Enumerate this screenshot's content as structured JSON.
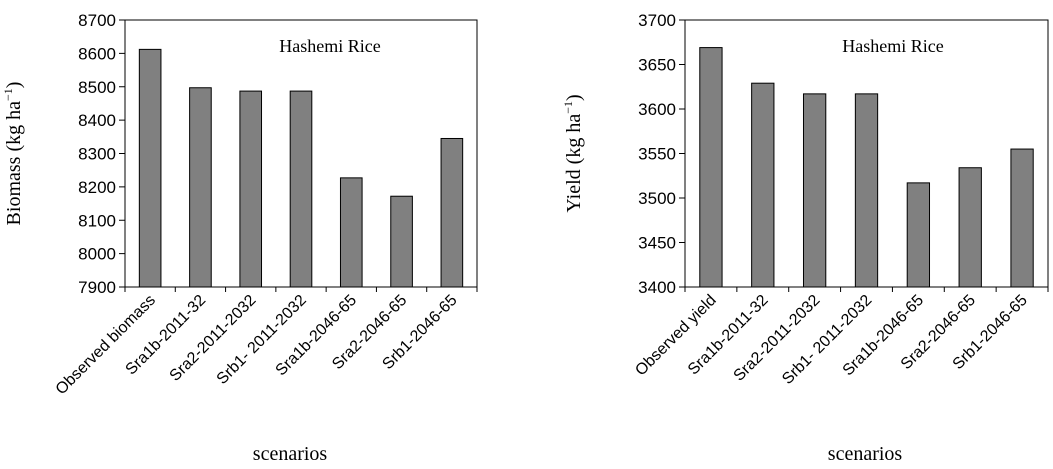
{
  "chart_data": [
    {
      "type": "bar",
      "title": "Hashemi Rice",
      "xlabel": "scenarios",
      "ylabel": "Biomass",
      "ylabel_unit": "(kg ha",
      "ylabel_sup": "−1",
      "ylabel_close": ")",
      "ylim": [
        7900,
        8700
      ],
      "ytick_step": 100,
      "yticks": [
        "7900",
        "8000",
        "8100",
        "8200",
        "8300",
        "8400",
        "8500",
        "8600",
        "8700"
      ],
      "categories": [
        "Observed biomass",
        "Sra1b-2011-32",
        "Sra2-2011-2032",
        "Srb1- 2011-2032",
        "Sra1b-2046-65",
        "Sra2-2046-65",
        "Srb1-2046-65"
      ],
      "values": [
        8612,
        8497,
        8487,
        8487,
        8227,
        8172,
        8345
      ],
      "bar_color": "#808080",
      "grid": false
    },
    {
      "type": "bar",
      "title": "Hashemi Rice",
      "xlabel": "scenarios",
      "ylabel": "Yield",
      "ylabel_unit": "(kg ha",
      "ylabel_sup": "−1",
      "ylabel_close": ")",
      "ylim": [
        3400,
        3700
      ],
      "ytick_step": 50,
      "yticks": [
        "3400",
        "3450",
        "3500",
        "3550",
        "3600",
        "3650",
        "3700"
      ],
      "categories": [
        "Observed yield",
        "Sra1b-2011-32",
        "Sra2-2011-2032",
        "Srb1- 2011-2032",
        "Sra1b-2046-65",
        "Sra2-2046-65",
        "Srb1-2046-65"
      ],
      "values": [
        3669,
        3629,
        3617,
        3617,
        3517,
        3534,
        3555
      ],
      "bar_color": "#808080",
      "grid": false
    }
  ]
}
